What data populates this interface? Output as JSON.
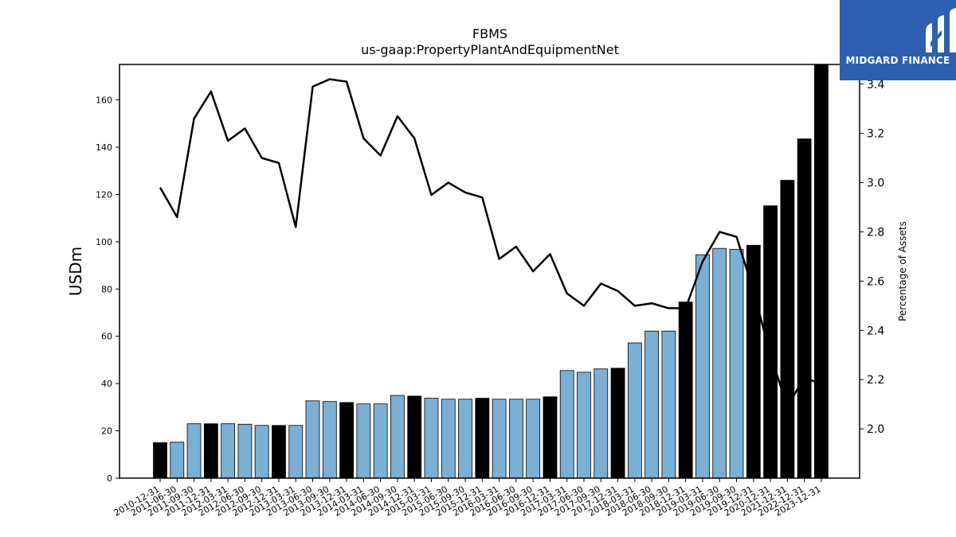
{
  "logo": {
    "text": "MIDGARD FINANCE",
    "background": "#2d5fae"
  },
  "chart_data": {
    "type": "bar",
    "title": "FBMS",
    "subtitle": "us-gaap:PropertyPlantAndEquipmentNet",
    "ylabel": "USDm",
    "y2label": "Percentage of Assets",
    "ylim": [
      0,
      175
    ],
    "y2lim": [
      1.8,
      3.48
    ],
    "yticks": [
      0,
      20,
      40,
      60,
      80,
      100,
      120,
      140,
      160
    ],
    "y2ticks": [
      2.0,
      2.2,
      2.4,
      2.6,
      2.8,
      3.0,
      3.2,
      3.4
    ],
    "grid": false,
    "colors": {
      "annual_bar": "#000000",
      "quarter_bar": "#7bafd4",
      "line": "#000000"
    },
    "categories": [
      "2010-12-31",
      "2011-06-30",
      "2011-09-30",
      "2011-12-31",
      "2012-03-31",
      "2012-06-30",
      "2012-09-30",
      "2012-12-31",
      "2013-03-31",
      "2013-06-30",
      "2013-09-30",
      "2013-12-31",
      "2014-03-31",
      "2014-06-30",
      "2014-09-30",
      "2014-12-31",
      "2015-03-31",
      "2015-06-30",
      "2015-09-30",
      "2015-12-31",
      "2016-03-31",
      "2016-06-30",
      "2016-09-30",
      "2016-12-31",
      "2017-03-31",
      "2017-06-30",
      "2017-09-30",
      "2017-12-31",
      "2018-03-31",
      "2018-06-30",
      "2018-09-30",
      "2018-12-31",
      "2019-03-31",
      "2019-06-30",
      "2019-09-30",
      "2019-12-31",
      "2020-12-31",
      "2021-12-31",
      "2022-12-31",
      "2023-12-31"
    ],
    "series": [
      {
        "type": "bar",
        "values": [
          15.0,
          15.2,
          23.0,
          23.0,
          23.0,
          22.8,
          22.3,
          22.3,
          22.3,
          32.7,
          32.4,
          32.0,
          31.4,
          31.4,
          35.0,
          34.7,
          33.8,
          33.4,
          33.4,
          33.8,
          33.4,
          33.4,
          33.4,
          34.4,
          45.5,
          44.8,
          46.2,
          46.5,
          57.2,
          62.2,
          62.2,
          74.5,
          94.5,
          97.2,
          96.8,
          98.5,
          115.2,
          126.0,
          143.5,
          175.0
        ],
        "annual": [
          true,
          false,
          false,
          true,
          false,
          false,
          false,
          true,
          false,
          false,
          false,
          true,
          false,
          false,
          false,
          true,
          false,
          false,
          false,
          true,
          false,
          false,
          false,
          true,
          false,
          false,
          false,
          true,
          false,
          false,
          false,
          true,
          false,
          false,
          false,
          true,
          true,
          true,
          true,
          true
        ]
      },
      {
        "type": "line",
        "axis": "right",
        "values": [
          2.98,
          2.86,
          3.26,
          3.37,
          3.17,
          3.22,
          3.1,
          3.08,
          2.82,
          3.39,
          3.42,
          3.41,
          3.18,
          3.11,
          3.27,
          3.18,
          2.95,
          3.0,
          2.96,
          2.94,
          2.69,
          2.74,
          2.64,
          2.71,
          2.55,
          2.5,
          2.59,
          2.56,
          2.5,
          2.51,
          2.49,
          2.49,
          2.68,
          2.8,
          2.78,
          2.56,
          2.3,
          2.09,
          2.21,
          2.18
        ]
      }
    ]
  }
}
